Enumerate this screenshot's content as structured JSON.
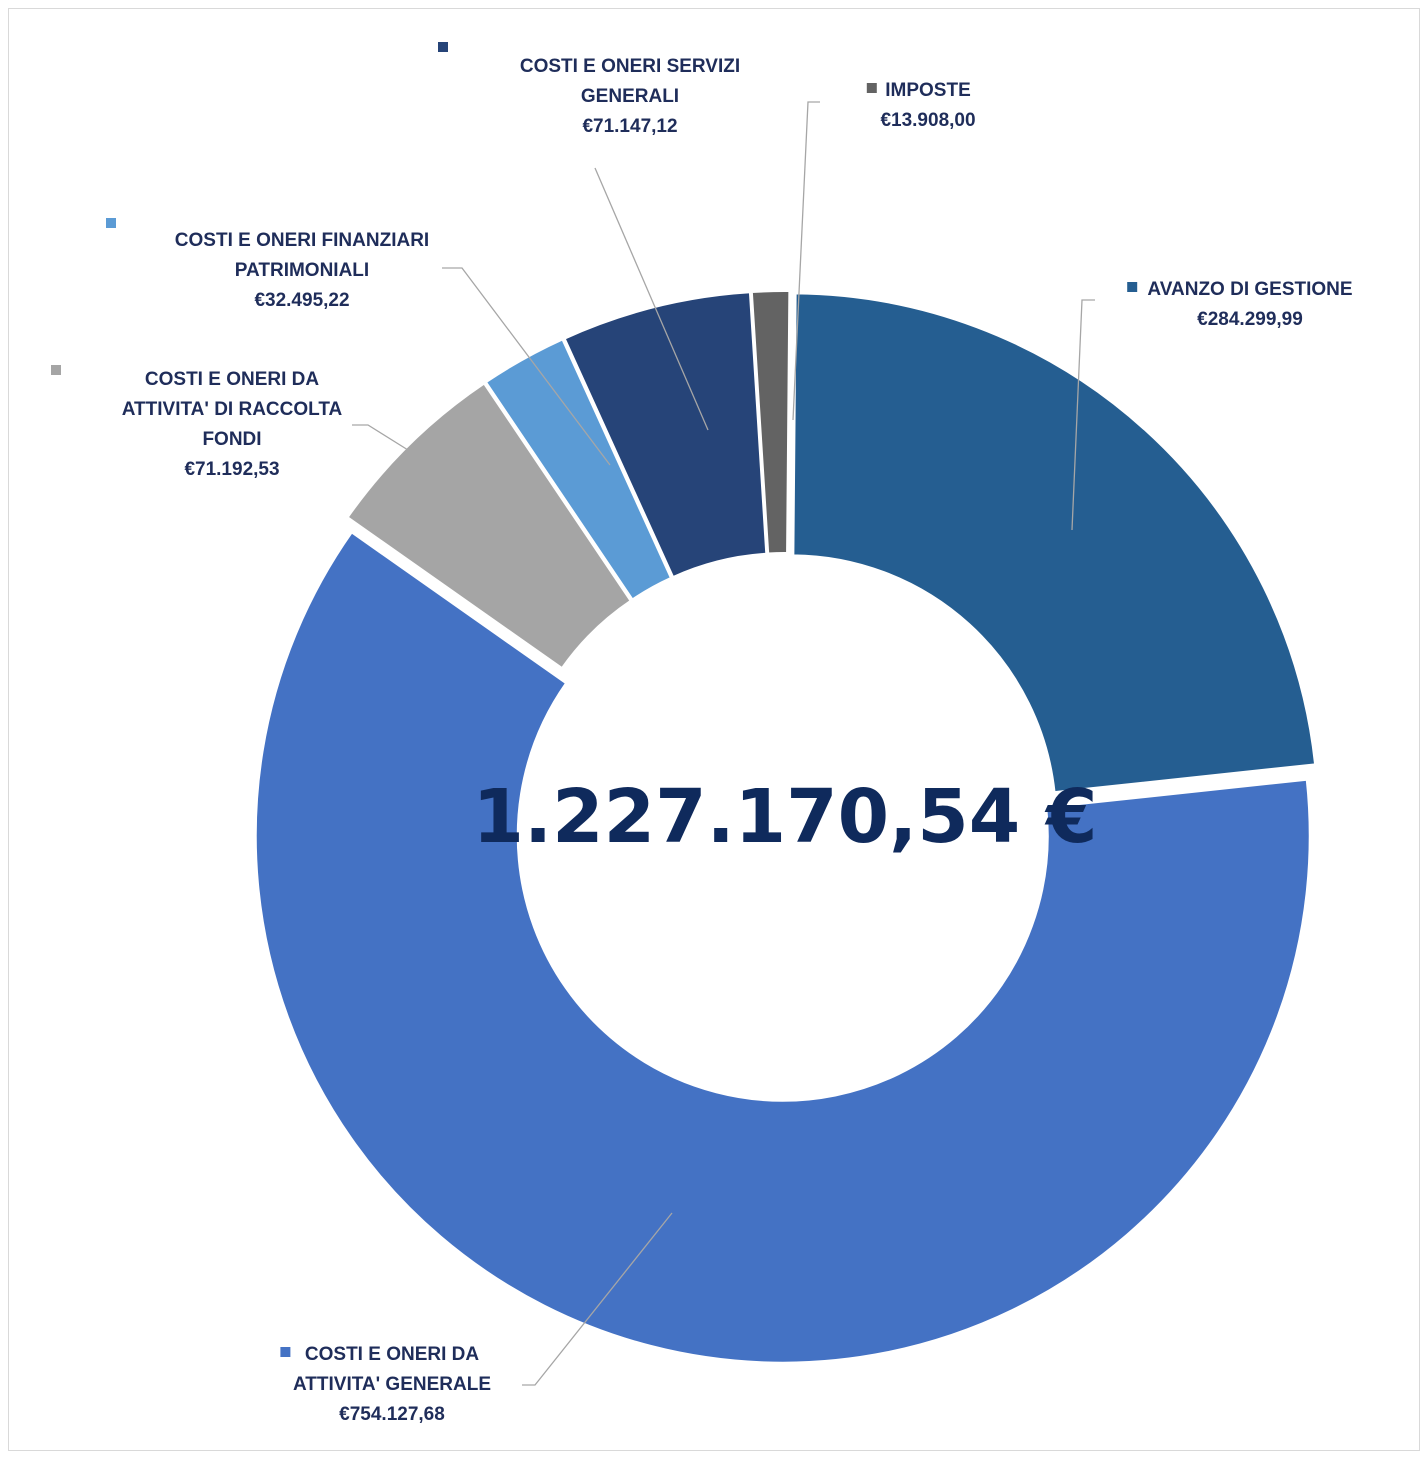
{
  "chart_data": {
    "type": "pie",
    "variant": "donut",
    "center_label": "1.227.170,54 €",
    "slices": [
      {
        "name_lines": [
          "AVANZO DI GESTIONE"
        ],
        "value_label": "€284.299,99",
        "value": 284299.99,
        "color": "#255e91",
        "icon": "legend-square-icon"
      },
      {
        "name_lines": [
          "COSTI E ONERI DA",
          "ATTIVITA' GENERALE"
        ],
        "value_label": "€754.127,68",
        "value": 754127.68,
        "color": "#4472c4",
        "icon": "legend-square-icon"
      },
      {
        "name_lines": [
          "COSTI E ONERI DA",
          "ATTIVITA' DI RACCOLTA",
          "FONDI"
        ],
        "value_label": "€71.192,53",
        "value": 71192.53,
        "color": "#a5a5a5",
        "icon": "legend-square-icon"
      },
      {
        "name_lines": [
          "COSTI E ONERI FINANZIARI",
          "PATRIMONIALI"
        ],
        "value_label": "€32.495,22",
        "value": 32495.22,
        "color": "#5b9bd5",
        "icon": "legend-square-icon"
      },
      {
        "name_lines": [
          "COSTI E ONERI SERVIZI",
          "GENERALI"
        ],
        "value_label": "€71.147,12",
        "value": 71147.12,
        "color": "#264478",
        "icon": "legend-square-icon"
      },
      {
        "name_lines": [
          "IMPOSTE"
        ],
        "value_label": "€13.908,00",
        "value": 13908.0,
        "color": "#636363",
        "icon": "legend-square-icon"
      }
    ]
  }
}
